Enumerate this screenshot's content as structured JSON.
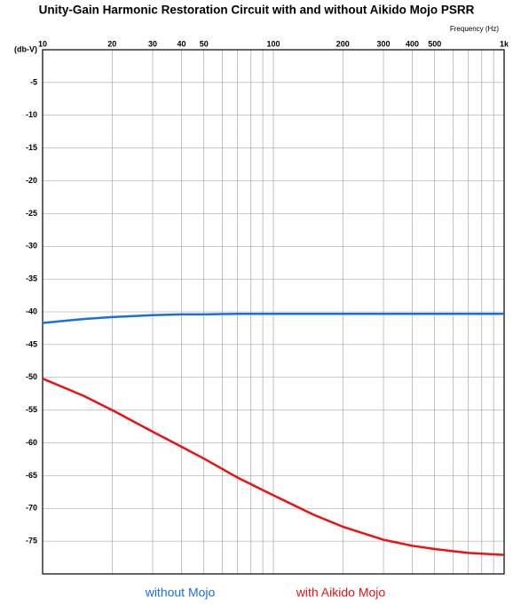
{
  "chart_data": {
    "type": "line",
    "title": "Unity-Gain Harmonic Restoration Circuit with and without Aikido Mojo PSRR",
    "x_label": "Frequency  (Hz)",
    "x": [
      10,
      15,
      20,
      30,
      40,
      50,
      70,
      100,
      150,
      200,
      300,
      400,
      500,
      700,
      1000
    ],
    "series": [
      {
        "name": "without Mojo",
        "color": "#1a6fe0",
        "values": [
          -41.7,
          -41.1,
          -40.8,
          -40.5,
          -40.4,
          -40.4,
          -40.3,
          -40.3,
          -40.3,
          -40.3,
          -40.3,
          -40.3,
          -40.3,
          -40.3,
          -40.3
        ]
      },
      {
        "name": "with Aikido Mojo",
        "color": "#ee1111",
        "values": [
          -50.2,
          -52.8,
          -55,
          -58.3,
          -60.6,
          -62.4,
          -65.3,
          -68,
          -71,
          -72.8,
          -74.8,
          -75.7,
          -76.2,
          -76.8,
          -77.1
        ]
      }
    ],
    "xlim": [
      10,
      1000
    ],
    "x_log": true,
    "xticks": [
      10,
      20,
      30,
      40,
      50,
      100,
      200,
      300,
      400,
      500,
      {
        "value": 1000,
        "label": "1k"
      }
    ],
    "x_minor_grid": [
      60,
      70,
      80,
      90,
      600,
      700,
      800,
      900
    ],
    "ylim": [
      -80,
      0
    ],
    "yticks": [
      {
        "value": 0,
        "label": "(db-V)"
      },
      -5,
      -10,
      -15,
      -20,
      -25,
      -30,
      -35,
      -40,
      -45,
      -50,
      -55,
      -60,
      -65,
      -70,
      -75
    ],
    "grid": true
  }
}
